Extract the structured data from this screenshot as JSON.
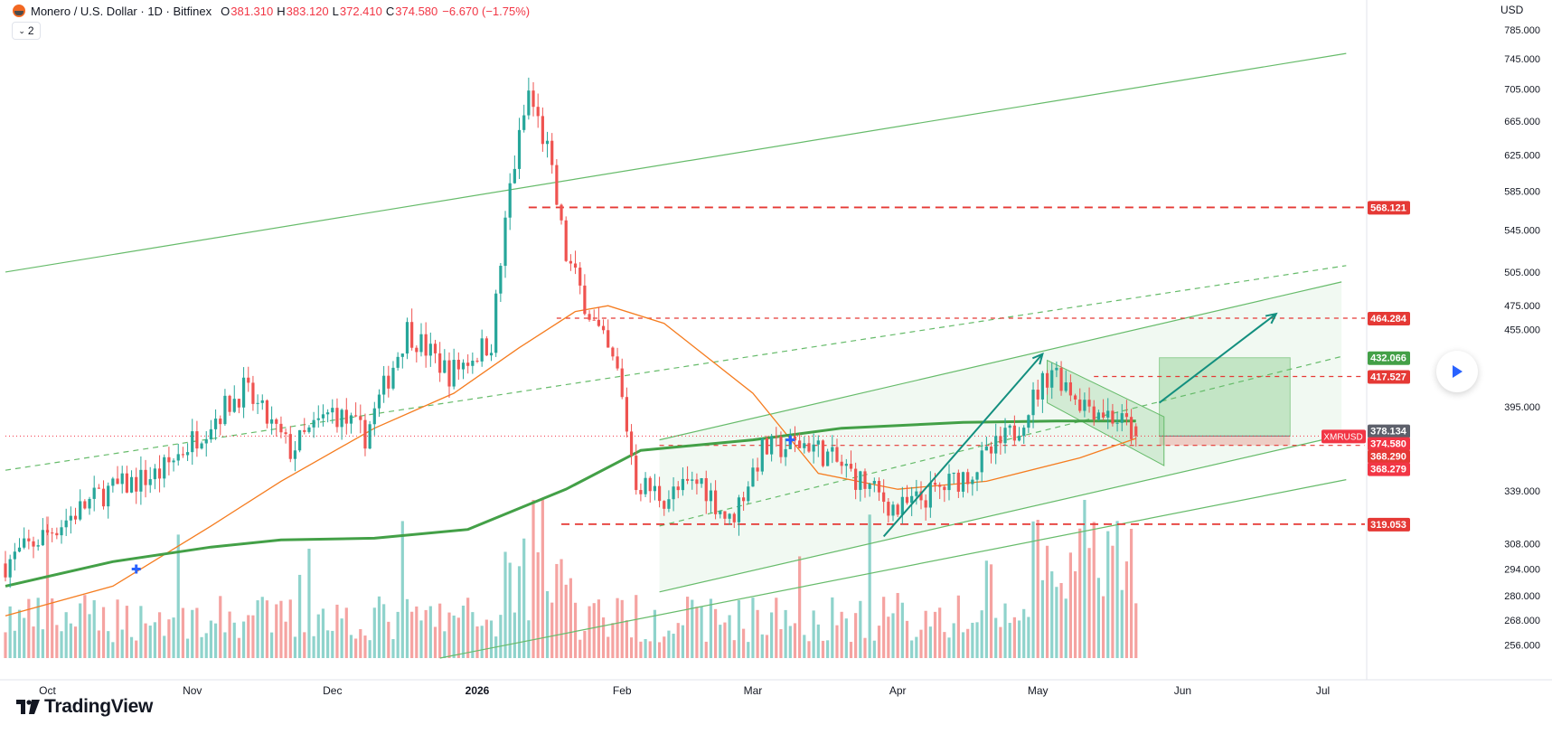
{
  "header": {
    "symbol_title": "Monero / U.S. Dollar · 1D · Bitfinex",
    "open_key": "O",
    "open_value": "381.310",
    "high_key": "H",
    "high_value": "383.120",
    "low_key": "L",
    "low_value": "372.410",
    "close_key": "C",
    "close_value": "374.580",
    "change_value": "−6.670 (−1.75%)",
    "indicator_count": "2",
    "currency": "USD"
  },
  "branding": {
    "name": "TradingView"
  },
  "colors": {
    "up": "#26a69a",
    "down": "#ef5350",
    "up_volume": "#8fd3cc",
    "down_volume": "#f5a3a1",
    "ma_short": "#f57c1f",
    "ma_long": "#43a047",
    "channel": "#66bb6a",
    "level_line": "#e53935",
    "arrow": "#138f7f"
  },
  "chart_data": {
    "type": "candlestick",
    "x_range": [
      "2025-09-22",
      "2026-07-10"
    ],
    "x_ticks": [
      {
        "date": "2025-10-01",
        "label": "Oct"
      },
      {
        "date": "2025-11-01",
        "label": "Nov"
      },
      {
        "date": "2025-12-01",
        "label": "Dec"
      },
      {
        "date": "2026-01-01",
        "label": "2026"
      },
      {
        "date": "2026-02-01",
        "label": "Feb"
      },
      {
        "date": "2026-03-01",
        "label": "Mar"
      },
      {
        "date": "2026-04-01",
        "label": "Apr"
      },
      {
        "date": "2026-05-01",
        "label": "May"
      },
      {
        "date": "2026-06-01",
        "label": "Jun"
      },
      {
        "date": "2026-07-01",
        "label": "Jul"
      }
    ],
    "y_scale": "log",
    "y_range": [
      250,
      810
    ],
    "y_ticks": [
      "785.000",
      "745.000",
      "705.000",
      "665.000",
      "625.000",
      "585.000",
      "545.000",
      "505.000",
      "475.000",
      "455.000",
      "395.000",
      "339.000",
      "308.000",
      "294.000",
      "280.000",
      "268.000",
      "256.000"
    ],
    "price_labels": [
      {
        "value": 568.121,
        "text": "568.121",
        "color": "#e53935"
      },
      {
        "value": 464.284,
        "text": "464.284",
        "color": "#e53935"
      },
      {
        "value": 432.066,
        "text": "432.066",
        "color": "#43a047"
      },
      {
        "value": 417.527,
        "text": "417.527",
        "color": "#e53935"
      },
      {
        "value": 378.134,
        "text": "378.134",
        "color": "#5d606b"
      },
      {
        "value": 374.58,
        "text": "374.580",
        "color": "#f23645"
      },
      {
        "value": 368.29,
        "text": "368.290",
        "color": "#e53935"
      },
      {
        "value": 368.279,
        "text": "368.279",
        "color": "#f23645"
      },
      {
        "value": 319.053,
        "text": "319.053",
        "color": "#e53935"
      }
    ],
    "symbol_tag": "XMRUSD",
    "horizontal_levels": [
      {
        "value": 568.121,
        "from": "2026-01-12",
        "style": "dashed-heavy"
      },
      {
        "value": 464.284,
        "from": "2026-01-18",
        "style": "dashed"
      },
      {
        "value": 417.527,
        "from": "2026-05-13",
        "style": "dashed"
      },
      {
        "value": 368.29,
        "from": "2026-02-09",
        "style": "dashed"
      },
      {
        "value": 319.053,
        "from": "2026-01-19",
        "style": "dashed-heavy"
      }
    ],
    "current_price_line": {
      "value": 374.58
    },
    "anchors": [
      {
        "date": "2025-09-22",
        "price": 297
      },
      {
        "date": "2025-10-03",
        "price": 318
      },
      {
        "date": "2025-10-13",
        "price": 338
      },
      {
        "date": "2025-10-25",
        "price": 350
      },
      {
        "date": "2025-11-05",
        "price": 385
      },
      {
        "date": "2025-11-12",
        "price": 408
      },
      {
        "date": "2025-11-22",
        "price": 365
      },
      {
        "date": "2025-12-01",
        "price": 392
      },
      {
        "date": "2025-12-08",
        "price": 375
      },
      {
        "date": "2025-12-17",
        "price": 455
      },
      {
        "date": "2025-12-26",
        "price": 420
      },
      {
        "date": "2026-01-04",
        "price": 445
      },
      {
        "date": "2026-01-08",
        "price": 590
      },
      {
        "date": "2026-01-12",
        "price": 700
      },
      {
        "date": "2026-01-16",
        "price": 630
      },
      {
        "date": "2026-01-20",
        "price": 520
      },
      {
        "date": "2026-01-26",
        "price": 460
      },
      {
        "date": "2026-01-31",
        "price": 420
      },
      {
        "date": "2026-02-04",
        "price": 345
      },
      {
        "date": "2026-02-10",
        "price": 335
      },
      {
        "date": "2026-02-18",
        "price": 345
      },
      {
        "date": "2026-02-24",
        "price": 320
      },
      {
        "date": "2026-03-03",
        "price": 365
      },
      {
        "date": "2026-03-13",
        "price": 370
      },
      {
        "date": "2026-03-22",
        "price": 350
      },
      {
        "date": "2026-04-01",
        "price": 327
      },
      {
        "date": "2026-04-10",
        "price": 340
      },
      {
        "date": "2026-04-17",
        "price": 352
      },
      {
        "date": "2026-04-26",
        "price": 378
      },
      {
        "date": "2026-05-04",
        "price": 425
      },
      {
        "date": "2026-05-10",
        "price": 400
      },
      {
        "date": "2026-05-16",
        "price": 390
      },
      {
        "date": "2026-05-20",
        "price": 382
      },
      {
        "date": "2026-05-22",
        "price": 374.58
      }
    ],
    "ma_short_points": [
      {
        "date": "2025-09-22",
        "price": 270
      },
      {
        "date": "2025-10-15",
        "price": 285
      },
      {
        "date": "2025-11-05",
        "price": 318
      },
      {
        "date": "2025-11-20",
        "price": 345
      },
      {
        "date": "2025-12-10",
        "price": 380
      },
      {
        "date": "2025-12-27",
        "price": 405
      },
      {
        "date": "2026-01-10",
        "price": 440
      },
      {
        "date": "2026-01-22",
        "price": 470
      },
      {
        "date": "2026-01-29",
        "price": 475
      },
      {
        "date": "2026-02-10",
        "price": 460
      },
      {
        "date": "2026-03-01",
        "price": 405
      },
      {
        "date": "2026-03-15",
        "price": 350
      },
      {
        "date": "2026-04-01",
        "price": 340
      },
      {
        "date": "2026-04-20",
        "price": 345
      },
      {
        "date": "2026-05-10",
        "price": 360
      },
      {
        "date": "2026-05-22",
        "price": 373
      }
    ],
    "ma_long_points": [
      {
        "date": "2025-09-22",
        "price": 285
      },
      {
        "date": "2025-10-15",
        "price": 298
      },
      {
        "date": "2025-11-05",
        "price": 306
      },
      {
        "date": "2025-11-20",
        "price": 310
      },
      {
        "date": "2025-12-10",
        "price": 311
      },
      {
        "date": "2025-12-30",
        "price": 316
      },
      {
        "date": "2026-01-20",
        "price": 340
      },
      {
        "date": "2026-02-05",
        "price": 365
      },
      {
        "date": "2026-03-01",
        "price": 372
      },
      {
        "date": "2026-03-20",
        "price": 380
      },
      {
        "date": "2026-04-15",
        "price": 384
      },
      {
        "date": "2026-05-05",
        "price": 385
      },
      {
        "date": "2026-05-22",
        "price": 385
      }
    ],
    "trend_lines": [
      {
        "p1": {
          "date": "2025-09-22",
          "price": 505
        },
        "p2": {
          "date": "2026-07-06",
          "price": 752
        },
        "style": "solid"
      },
      {
        "p1": {
          "date": "2025-09-22",
          "price": 352
        },
        "p2": {
          "date": "2026-07-06",
          "price": 511
        },
        "style": "dashed"
      },
      {
        "p1": {
          "date": "2026-02-09",
          "price": 372
        },
        "p2": {
          "date": "2026-07-05",
          "price": 496
        },
        "style": "solid"
      },
      {
        "p1": {
          "date": "2026-02-09",
          "price": 282
        },
        "p2": {
          "date": "2026-07-05",
          "price": 375
        },
        "style": "solid"
      },
      {
        "p1": {
          "date": "2025-12-24",
          "price": 250
        },
        "p2": {
          "date": "2026-07-06",
          "price": 346
        },
        "style": "solid"
      },
      {
        "p1": {
          "date": "2026-02-09",
          "price": 318
        },
        "p2": {
          "date": "2026-07-05",
          "price": 433
        },
        "style": "dashed"
      }
    ],
    "arrows": [
      {
        "from": {
          "date": "2026-03-29",
          "price": 312
        },
        "to": {
          "date": "2026-05-02",
          "price": 435
        }
      },
      {
        "from": {
          "date": "2026-05-27",
          "price": 398
        },
        "to": {
          "date": "2026-06-21",
          "price": 468
        }
      }
    ],
    "position_box": {
      "start": "2026-05-27",
      "end": "2026-06-24",
      "entry": 374.58,
      "target": 432.066,
      "stop": 368.29
    },
    "flag_channel": [
      {
        "date": "2026-05-03",
        "price": 430
      },
      {
        "date": "2026-05-28",
        "price": 388
      },
      {
        "date": "2026-05-28",
        "price": 355
      },
      {
        "date": "2026-05-03",
        "price": 398
      }
    ],
    "markers": [
      {
        "date": "2025-10-20",
        "price": 294
      },
      {
        "date": "2026-03-09",
        "price": 372
      }
    ],
    "volume_scale_max": 100
  }
}
